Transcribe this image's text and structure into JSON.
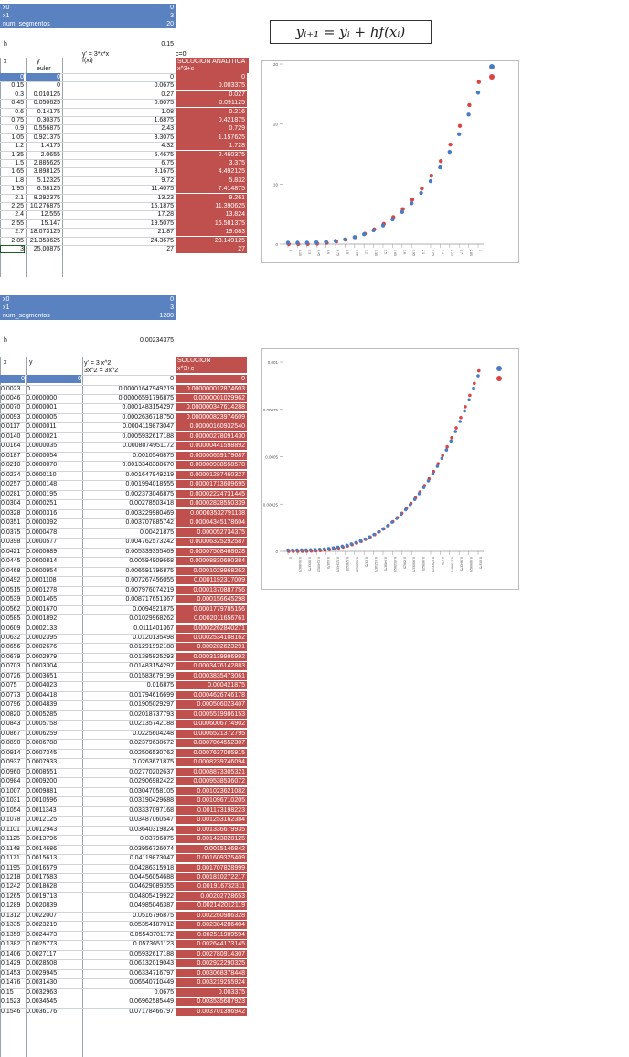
{
  "top": {
    "rows": [
      {
        "label": "x0",
        "value": "0"
      },
      {
        "label": "x1",
        "value": "3"
      },
      {
        "label": "num_segmentos",
        "value": "20"
      }
    ],
    "h_label": "h",
    "h_value": "0.15",
    "header": {
      "x": "x",
      "y": "y",
      "euler": "euler",
      "fx_line1": "y' = 3*x*x",
      "fx_line2": "f(xi)",
      "c_label": "c=0",
      "sol_line1": "SOLUCION ANALITICA",
      "sol_line2": "x^3+c"
    },
    "data": [
      [
        "0",
        "0",
        "0",
        "0"
      ],
      [
        "0.15",
        "0",
        "0.0675",
        "0.003375"
      ],
      [
        "0.3",
        "0.010125",
        "0.27",
        "0.027"
      ],
      [
        "0.45",
        "0.050625",
        "0.6075",
        "0.091125"
      ],
      [
        "0.6",
        "0.14175",
        "1.08",
        "0.216"
      ],
      [
        "0.75",
        "0.30375",
        "1.6875",
        "0.421875"
      ],
      [
        "0.9",
        "0.556875",
        "2.43",
        "0.729"
      ],
      [
        "1.05",
        "0.921375",
        "3.3075",
        "1.157625"
      ],
      [
        "1.2",
        "1.4175",
        "4.32",
        "1.728"
      ],
      [
        "1.35",
        "2.0655",
        "5.4675",
        "2.460375"
      ],
      [
        "1.5",
        "2.885625",
        "6.75",
        "3.375"
      ],
      [
        "1.65",
        "3.898125",
        "8.1675",
        "4.492125"
      ],
      [
        "1.8",
        "5.12325",
        "9.72",
        "5.832"
      ],
      [
        "1.95",
        "6.58125",
        "11.4075",
        "7.414875"
      ],
      [
        "2.1",
        "8.292375",
        "13.23",
        "9.261"
      ],
      [
        "2.25",
        "10.276875",
        "15.1875",
        "11.390625"
      ],
      [
        "2.4",
        "12.555",
        "17.28",
        "13.824"
      ],
      [
        "2.55",
        "15.147",
        "19.5075",
        "16.581375"
      ],
      [
        "2.7",
        "18.073125",
        "21.87",
        "19.683"
      ],
      [
        "2.85",
        "21.353625",
        "24.3675",
        "23.149125"
      ],
      [
        "3",
        "25.00875",
        "27",
        "27"
      ]
    ]
  },
  "formula": "yᵢ₊₁ = yᵢ + hf(xᵢ)",
  "bottom": {
    "rows": [
      {
        "label": "x0",
        "value": "0"
      },
      {
        "label": "x1",
        "value": "3"
      },
      {
        "label": "num_segmentos",
        "value": "1280"
      }
    ],
    "h_label": "h",
    "h_value": "0.00234375",
    "header": {
      "x": "x",
      "y": "y",
      "fx_line1": "y' = 3 x^2",
      "fx_line2": "3x^2 = 3x^2",
      "sol_line1": "SOLUCION",
      "sol_line2": "x^3+c"
    },
    "data": [
      [
        "0",
        "0",
        "0",
        "0"
      ],
      [
        "0.0023",
        "0",
        "0.00001647949219",
        "0.000000012874603"
      ],
      [
        "0.0046",
        "0.0000000",
        "0.00006591796875",
        "0.0000001029962"
      ],
      [
        "0.0070",
        "0.0000001",
        "0.0001483154297",
        "0.000000347614288"
      ],
      [
        "0.0093",
        "0.0000005",
        "0.0002636718750",
        "0.000000823974609"
      ],
      [
        "0.0117",
        "0.0000011",
        "0.0004119873047",
        "0.00000160932540"
      ],
      [
        "0.0140",
        "0.0000021",
        "0.0005932617188",
        "0.00000278091430"
      ],
      [
        "0.0164",
        "0.0000035",
        "0.0008074951172",
        "0.00000441598892"
      ],
      [
        "0.0187",
        "0.0000054",
        "0.0010546875",
        "0.00000659179687"
      ],
      [
        "0.0210",
        "0.0000078",
        "0.0013348388670",
        "0.00000938558578"
      ],
      [
        "0.0234",
        "0.0000110",
        "0.001647949219",
        "0.00001287460327"
      ],
      [
        "0.0257",
        "0.0000148",
        "0.001994018555",
        "0.00001713609695"
      ],
      [
        "0.0281",
        "0.0000195",
        "0.002373046875",
        "0.00002224731445"
      ],
      [
        "0.0304",
        "0.0000251",
        "0.00278503418",
        "0.00002828550339"
      ],
      [
        "0.0328",
        "0.0000316",
        "0.003229980469",
        "0.00003532791138"
      ],
      [
        "0.0351",
        "0.0000392",
        "0.003707885742",
        "0.00004345178604"
      ],
      [
        "0.0375",
        "0.0000478",
        "0.00421875",
        "0.000052734375"
      ],
      [
        "0.0398",
        "0.0000577",
        "0.004762573242",
        "0.00006325292587"
      ],
      [
        "0.0421",
        "0.0000689",
        "0.005339355469",
        "0.00007508468628"
      ],
      [
        "0.0445",
        "0.0000814",
        "0.00594909668",
        "0.00008830690384"
      ],
      [
        "0.0468",
        "0.0000954",
        "0.006591796875",
        "0.0001029968262"
      ],
      [
        "0.0492",
        "0.0001108",
        "0.007267456055",
        "0.0001192317009"
      ],
      [
        "0.0515",
        "0.0001278",
        "0.007976074219",
        "0.0001370887756"
      ],
      [
        "0.0539",
        "0.0001465",
        "0.008717651367",
        "0.000156645298"
      ],
      [
        "0.0562",
        "0.0001670",
        "0.0094921875",
        "0.0001779785156"
      ],
      [
        "0.0585",
        "0.0001892",
        "0.01029968262",
        "0.0002011656761"
      ],
      [
        "0.0609",
        "0.0002133",
        "0.0111401367",
        "0.0002262840271"
      ],
      [
        "0.0632",
        "0.0002395",
        "0.0120135498",
        "0.0002534108162"
      ],
      [
        "0.0656",
        "0.0002676",
        "0.01291992188",
        "0.000282623291"
      ],
      [
        "0.0679",
        "0.0002979",
        "0.01385925293",
        "0.0003139986992"
      ],
      [
        "0.0703",
        "0.0003304",
        "0.01483154297",
        "0.0003476142883"
      ],
      [
        "0.0726",
        "0.0003651",
        "0.01583679199",
        "0.0003835473061"
      ],
      [
        "0.075",
        "0.0004023",
        "0.016875",
        "0.000421875"
      ],
      [
        "0.0773",
        "0.0004418",
        "0.01794616699",
        "0.0004626746178"
      ],
      [
        "0.0796",
        "0.0004839",
        "0.01905029297",
        "0.000506023407"
      ],
      [
        "0.0820",
        "0.0005285",
        "0.02018737793",
        "0.0005519986153"
      ],
      [
        "0.0843",
        "0.0005758",
        "0.02135742188",
        "0.0006006774902"
      ],
      [
        "0.0867",
        "0.0006259",
        "0.0225604248",
        "0.0006521372795"
      ],
      [
        "0.0890",
        "0.0006788",
        "0.02379638672",
        "0.0007064552307"
      ],
      [
        "0.0914",
        "0.0007345",
        "0.02506530762",
        "0.0007637085915"
      ],
      [
        "0.0937",
        "0.0007933",
        "0.0263671875",
        "0.0008239746094"
      ],
      [
        "0.0960",
        "0.0008551",
        "0.02770202637",
        "0.0008873305321"
      ],
      [
        "0.0984",
        "0.0009200",
        "0.02906982422",
        "0.0009538536072"
      ],
      [
        "0.1007",
        "0.0009881",
        "0.03047058105",
        "0.001023621082"
      ],
      [
        "0.1031",
        "0.0010596",
        "0.03190429688",
        "0.001096710205"
      ],
      [
        "0.1054",
        "0.0011343",
        "0.03337097168",
        "0.001173198223"
      ],
      [
        "0.1078",
        "0.0012125",
        "0.03487060547",
        "0.001253162384"
      ],
      [
        "0.1101",
        "0.0012943",
        "0.03640319824",
        "0.001336679935"
      ],
      [
        "0.1125",
        "0.0013796",
        "0.03796875",
        "0.001423828125"
      ],
      [
        "0.1148",
        "0.0014686",
        "0.03956726074",
        "0.0015146842"
      ],
      [
        "0.1171",
        "0.0015613",
        "0.04119873047",
        "0.001609325409"
      ],
      [
        "0.1195",
        "0.0016579",
        "0.04286315918",
        "0.001707828999"
      ],
      [
        "0.1218",
        "0.0017583",
        "0.04456054688",
        "0.001810272217"
      ],
      [
        "0.1242",
        "0.0018628",
        "0.04629089355",
        "0.001916732311"
      ],
      [
        "0.1265",
        "0.0019713",
        "0.04805419922",
        "0.00202728653"
      ],
      [
        "0.1289",
        "0.0020839",
        "0.04985046387",
        "0.002142012119"
      ],
      [
        "0.1312",
        "0.0022007",
        "0.0516796875",
        "0.002260986328"
      ],
      [
        "0.1335",
        "0.0023219",
        "0.05354187012",
        "0.002384286404"
      ],
      [
        "0.1359",
        "0.0024473",
        "0.05543701172",
        "0.002511989594"
      ],
      [
        "0.1382",
        "0.0025773",
        "0.0573651123",
        "0.002644173145"
      ],
      [
        "0.1406",
        "0.0027117",
        "0.05932617188",
        "0.002780914307"
      ],
      [
        "0.1429",
        "0.0028508",
        "0.06132019043",
        "0.002922290325"
      ],
      [
        "0.1453",
        "0.0029945",
        "0.06334716797",
        "0.003068378448"
      ],
      [
        "0.1476",
        "0.0031430",
        "0.06540710449",
        "0.003219255924"
      ],
      [
        "0.15",
        "0.0032963",
        "0.0675",
        "0.003375"
      ],
      [
        "0.1523",
        "0.0034545",
        "0.06962585449",
        "0.003535687923"
      ],
      [
        "0.1546",
        "0.0036176",
        "0.07178466797",
        "0.003701396942"
      ]
    ]
  },
  "chart1": {
    "type": "scatter",
    "y_ticks": [
      "0",
      "10",
      "20",
      "30"
    ],
    "ylim": [
      0,
      30
    ],
    "x_tick_labels": [
      "0",
      "0.15",
      "0.3",
      "0.45",
      "0.6",
      "0.75",
      "0.9",
      "1.05",
      "1.2",
      "1.35",
      "1.5",
      "1.65",
      "1.8",
      "1.95",
      "2.1",
      "2.25",
      "2.4",
      "2.55",
      "2.7",
      "2.85",
      "3"
    ],
    "colors": {
      "euler": "#4a7cc4",
      "analytic": "#d94545"
    }
  },
  "chart2": {
    "type": "scatter",
    "y_ticks": [
      "0",
      "0.00025",
      "0.0005",
      "0.00075",
      "0.001"
    ],
    "ylim": [
      0,
      0.001
    ],
    "x_tick_labels": [
      "0",
      "0.0046875",
      "0.009375",
      "0.0140625",
      "0.01875",
      "0.0234375",
      "0.028125",
      "0.0328125",
      "0.0375",
      "0.0421875",
      "0.046875",
      "0.0515625",
      "0.05625",
      "0.0609375",
      "0.065625",
      "0.0703125",
      "0.075",
      "0.0796875",
      "0.084375",
      "0.0890625",
      "0.09375"
    ],
    "colors": {
      "euler": "#4a7cc4",
      "analytic": "#d94545"
    }
  },
  "chart_data": [
    {
      "type": "scatter",
      "title": "",
      "xlabel": "",
      "ylabel": "",
      "ylim": [
        0,
        30
      ],
      "grid": false,
      "x": [
        0,
        0.15,
        0.3,
        0.45,
        0.6,
        0.75,
        0.9,
        1.05,
        1.2,
        1.35,
        1.5,
        1.65,
        1.8,
        1.95,
        2.1,
        2.25,
        2.4,
        2.55,
        2.7,
        2.85,
        3
      ],
      "series": [
        {
          "values": [
            0,
            0,
            0.010125,
            0.050625,
            0.14175,
            0.30375,
            0.556875,
            0.921375,
            1.4175,
            2.0655,
            2.885625,
            3.898125,
            5.12325,
            6.58125,
            8.292375,
            10.276875,
            12.555,
            15.147,
            18.073125,
            21.353625,
            25.00875
          ]
        },
        {
          "values": [
            0,
            0.003375,
            0.027,
            0.091125,
            0.216,
            0.421875,
            0.729,
            1.157625,
            1.728,
            2.460375,
            3.375,
            4.492125,
            5.832,
            7.414875,
            9.261,
            11.390625,
            13.824,
            16.581375,
            19.683,
            23.149125,
            27
          ]
        }
      ]
    },
    {
      "type": "scatter",
      "title": "",
      "xlabel": "",
      "ylabel": "",
      "ylim": [
        0,
        0.001
      ],
      "grid": false,
      "x": [
        0,
        0.0023,
        0.0046,
        0.007,
        0.0093,
        0.0117,
        0.014,
        0.0164,
        0.0187,
        0.021,
        0.0234,
        0.0257,
        0.0281,
        0.0304,
        0.0328,
        0.0351,
        0.0375,
        0.0398,
        0.0421,
        0.0445,
        0.0468,
        0.0492,
        0.0515,
        0.0539,
        0.0562,
        0.0585,
        0.0609,
        0.0632,
        0.0656,
        0.0679,
        0.0703,
        0.0726,
        0.075,
        0.0773,
        0.0796,
        0.082,
        0.0843,
        0.0867,
        0.089,
        0.0914,
        0.0937,
        0.096,
        0.0984
      ],
      "series": [
        {
          "values": [
            0,
            0,
            0.0,
            1e-07,
            5e-07,
            1.1e-06,
            2.1e-06,
            3.5e-06,
            5.4e-06,
            7.8e-06,
            1.1e-05,
            1.48e-05,
            1.95e-05,
            2.51e-05,
            3.16e-05,
            3.92e-05,
            4.78e-05,
            5.77e-05,
            6.89e-05,
            8.14e-05,
            9.54e-05,
            0.0001108,
            0.0001278,
            0.0001465,
            0.000167,
            0.0001892,
            0.0002133,
            0.0002395,
            0.0002676,
            0.0002979,
            0.0003304,
            0.0003651,
            0.0004023,
            0.0004418,
            0.0004839,
            0.0005285,
            0.0005758,
            0.0006259,
            0.0006788,
            0.0007345,
            0.0007933,
            0.0008551,
            0.00092
          ]
        },
        {
          "values": [
            0,
            1.3e-08,
            1e-07,
            3.5e-07,
            8.2e-07,
            1.6e-06,
            2.8e-06,
            4.4e-06,
            6.6e-06,
            9.4e-06,
            1.29e-05,
            1.71e-05,
            2.22e-05,
            2.83e-05,
            3.53e-05,
            4.35e-05,
            5.27e-05,
            6.33e-05,
            7.51e-05,
            8.83e-05,
            0.000103,
            0.0001192,
            0.0001371,
            0.0001566,
            0.000178,
            0.0002012,
            0.0002263,
            0.0002534,
            0.0002826,
            0.000314,
            0.0003476,
            0.0003835,
            0.0004219,
            0.0004627,
            0.000506,
            0.000552,
            0.0006007,
            0.0006521,
            0.0007065,
            0.0007637,
            0.000824,
            0.0008873,
            0.0009539
          ]
        }
      ]
    }
  ]
}
